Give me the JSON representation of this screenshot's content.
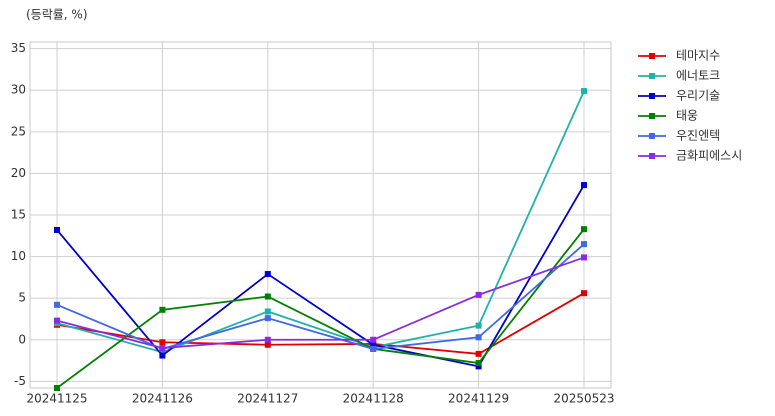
{
  "chart_data": {
    "type": "line",
    "unit_label": "(등락률, %)",
    "categories": [
      "20241125",
      "20241126",
      "20241127",
      "20241128",
      "20241129",
      "20250523"
    ],
    "series": [
      {
        "name": "테마지수",
        "color": "#e00000",
        "values": [
          1.8,
          -0.3,
          -0.6,
          -0.5,
          -1.7,
          5.6
        ]
      },
      {
        "name": "에너토크",
        "color": "#20b2aa",
        "values": [
          2.0,
          -1.5,
          3.4,
          -0.9,
          1.7,
          29.9
        ]
      },
      {
        "name": "우리기술",
        "color": "#0000cd",
        "values": [
          13.2,
          -1.9,
          7.9,
          -0.6,
          -3.2,
          18.6
        ]
      },
      {
        "name": "태웅",
        "color": "#008000",
        "values": [
          -5.8,
          3.6,
          5.2,
          -1.1,
          -2.8,
          13.3
        ]
      },
      {
        "name": "우진엔텍",
        "color": "#4169e1",
        "values": [
          4.2,
          -1.1,
          2.6,
          -1.1,
          0.3,
          11.5
        ]
      },
      {
        "name": "금화피에스시",
        "color": "#8a2be2",
        "values": [
          2.3,
          -1.0,
          0.0,
          0.0,
          5.4,
          9.9
        ]
      }
    ],
    "ylim": [
      -5.8,
      35.8
    ],
    "yticks": [
      -5,
      0,
      5,
      10,
      15,
      20,
      25,
      30,
      35
    ],
    "grid": true,
    "legend": "outside-right"
  }
}
